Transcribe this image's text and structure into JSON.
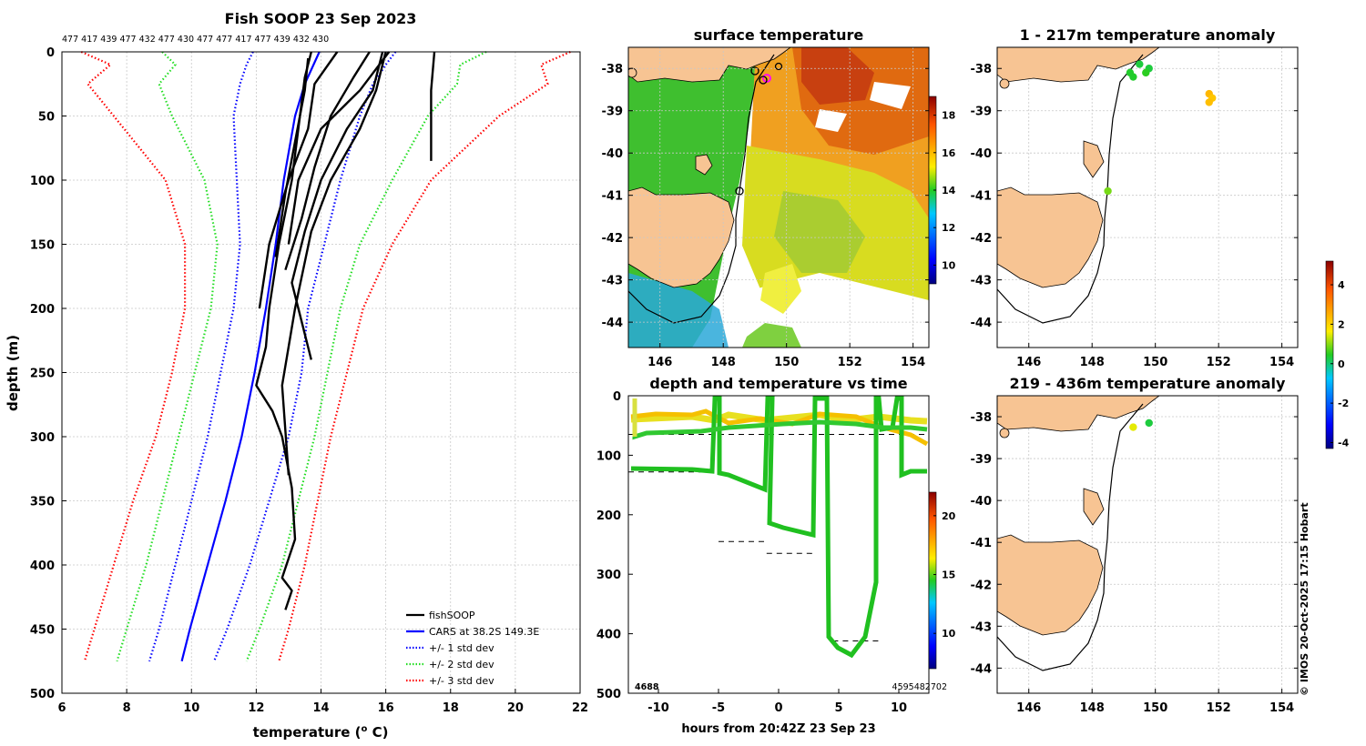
{
  "credit": "© IMOS 20-Oct-2025 17:15 Hobart",
  "colors": {
    "land": "#f7c493",
    "cars": "#0000ff",
    "std1": "#0000ff",
    "std2": "#22dd22",
    "std3": "#ff0000",
    "obs": "#000000"
  },
  "chart_data": [
    {
      "id": "profile",
      "type": "line",
      "title": "Fish SOOP 23 Sep 2023",
      "subtitle": "477 417 439 477 432 477 430 477 477 417 477 439 432 430",
      "xlabel": "temperature (o C)",
      "xlabel_main": "temperature (",
      "xlabel_sup": "o",
      "xlabel_end": " C)",
      "ylabel": "depth (m)",
      "xlim": [
        6,
        22
      ],
      "ylim": [
        500,
        0
      ],
      "xticks": [
        6,
        8,
        10,
        12,
        14,
        16,
        18,
        20,
        22
      ],
      "yticks": [
        0,
        50,
        100,
        150,
        200,
        250,
        300,
        350,
        400,
        450,
        500
      ],
      "legend": [
        "fishSOOP",
        "CARS at 38.2S 149.3E",
        "+/- 1 std dev",
        "+/- 2 std dev",
        "+/- 3 std dev"
      ],
      "legend_position": "bottom-right",
      "series": [
        {
          "name": "CARS at 38.2S 149.3E",
          "style": "solid",
          "color": "#0000ff",
          "depth": [
            0,
            25,
            50,
            100,
            150,
            200,
            250,
            300,
            350,
            400,
            450,
            475
          ],
          "temp": [
            13.95,
            13.5,
            13.2,
            12.85,
            12.6,
            12.3,
            11.95,
            11.55,
            11.05,
            10.5,
            9.95,
            9.7
          ]
        },
        {
          "name": "+/- 1 std dev",
          "style": "dotted",
          "color": "#0000ff",
          "depth": [
            0,
            10,
            25,
            50,
            100,
            150,
            200,
            250,
            300,
            350,
            400,
            450,
            475
          ],
          "lower": [
            11.9,
            11.7,
            11.5,
            11.3,
            11.4,
            11.5,
            11.3,
            10.9,
            10.5,
            10.0,
            9.5,
            9.0,
            8.7
          ],
          "upper": [
            16.3,
            16.0,
            15.6,
            15.2,
            14.6,
            14.1,
            13.6,
            13.4,
            13.0,
            12.4,
            11.8,
            11.1,
            10.7
          ]
        },
        {
          "name": "+/- 2 std dev",
          "style": "dotted",
          "color": "#22dd22",
          "depth": [
            0,
            10,
            25,
            50,
            100,
            150,
            200,
            250,
            300,
            350,
            400,
            450,
            475
          ],
          "lower": [
            9.1,
            9.5,
            9.0,
            9.4,
            10.4,
            10.8,
            10.6,
            10.1,
            9.6,
            9.1,
            8.6,
            8.0,
            7.7
          ],
          "upper": [
            19.1,
            18.3,
            18.2,
            17.3,
            16.2,
            15.2,
            14.6,
            14.2,
            13.8,
            13.3,
            12.8,
            12.1,
            11.7
          ]
        },
        {
          "name": "+/- 3 std dev",
          "style": "dotted",
          "color": "#ff0000",
          "depth": [
            0,
            10,
            25,
            50,
            100,
            150,
            200,
            250,
            300,
            350,
            400,
            450,
            475
          ],
          "lower": [
            6.6,
            7.5,
            6.8,
            7.6,
            9.2,
            9.8,
            9.8,
            9.4,
            8.9,
            8.2,
            7.6,
            7.0,
            6.7
          ],
          "upper": [
            21.7,
            20.8,
            21.0,
            19.5,
            17.4,
            16.2,
            15.3,
            14.8,
            14.3,
            13.9,
            13.5,
            13.0,
            12.7
          ]
        },
        {
          "name": "fishSOOP",
          "style": "solid",
          "color": "#000000",
          "profiles": [
            {
              "depth": [
                0,
                20,
                60,
                100,
                150,
                200,
                230,
                260,
                280,
                300,
                340,
                380,
                410,
                420,
                435
              ],
              "temp": [
                13.7,
                13.5,
                13.3,
                13.1,
                12.7,
                12.4,
                12.3,
                12.0,
                12.5,
                12.8,
                13.1,
                13.2,
                12.8,
                13.1,
                12.9
              ]
            },
            {
              "depth": [
                0,
                30,
                60,
                100,
                140,
                180,
                220,
                240
              ],
              "temp": [
                15.9,
                15.6,
                14.8,
                14.0,
                13.5,
                13.1,
                13.5,
                13.7
              ]
            },
            {
              "depth": [
                0,
                30,
                60,
                100,
                140,
                200,
                260,
                330
              ],
              "temp": [
                16.0,
                15.7,
                15.2,
                14.3,
                13.7,
                13.2,
                12.8,
                13.0
              ]
            },
            {
              "depth": [
                0,
                25,
                60,
                100,
                150,
                200
              ],
              "temp": [
                14.5,
                13.8,
                13.6,
                13.0,
                12.4,
                12.1
              ]
            },
            {
              "depth": [
                0,
                20,
                50,
                90,
                130,
                170
              ],
              "temp": [
                15.5,
                15.0,
                14.3,
                13.8,
                13.4,
                12.9
              ]
            },
            {
              "depth": [
                0,
                30,
                60,
                100,
                150
              ],
              "temp": [
                16.1,
                15.2,
                14.0,
                13.3,
                13.0
              ]
            },
            {
              "depth": [
                0,
                30,
                85
              ],
              "temp": [
                17.5,
                17.4,
                17.4
              ]
            },
            {
              "depth": [
                5,
                30,
                70,
                110,
                160
              ],
              "temp": [
                13.6,
                13.5,
                13.2,
                12.9,
                12.6
              ]
            }
          ]
        }
      ]
    },
    {
      "id": "sst",
      "type": "heatmap",
      "title": "surface temperature",
      "xlim": [
        145,
        154.5
      ],
      "ylim": [
        -44.6,
        -37.5
      ],
      "xticks": [
        146,
        148,
        150,
        152,
        154
      ],
      "yticks": [
        -38,
        -39,
        -40,
        -41,
        -42,
        -43,
        -44
      ],
      "colorbar": {
        "min": 9,
        "max": 19,
        "ticks": [
          10,
          12,
          14,
          16,
          18
        ]
      }
    },
    {
      "id": "timeseries",
      "type": "scatter",
      "title": "depth and temperature vs time",
      "xlabel": "hours from 20:42Z 23 Sep 23",
      "xlim": [
        -12.5,
        12.5
      ],
      "ylim": [
        500,
        0
      ],
      "xticks": [
        -10,
        -5,
        0,
        5,
        10
      ],
      "yticks": [
        0,
        100,
        200,
        300,
        400,
        500
      ],
      "corner_left": "4688",
      "corner_right": "4595482702",
      "colorbar": {
        "min": 7,
        "max": 22,
        "ticks": [
          10,
          15,
          20
        ]
      },
      "target_depths": [
        65,
        128,
        245,
        265,
        412
      ]
    },
    {
      "id": "anom1",
      "type": "scatter",
      "title": "1 - 217m temperature anomaly",
      "xlim": [
        145,
        154.5
      ],
      "ylim": [
        -44.6,
        -37.5
      ],
      "xticks": [
        146,
        148,
        150,
        152,
        154
      ],
      "yticks": [
        -38,
        -39,
        -40,
        -41,
        -42,
        -43,
        -44
      ],
      "points": [
        {
          "lon": 149.2,
          "lat": -38.1,
          "anom": 0.4
        },
        {
          "lon": 149.3,
          "lat": -38.2,
          "anom": 0.4
        },
        {
          "lon": 149.5,
          "lat": -37.9,
          "anom": 0.3
        },
        {
          "lon": 149.8,
          "lat": -38.0,
          "anom": 0.3
        },
        {
          "lon": 149.7,
          "lat": -38.1,
          "anom": 0.5
        },
        {
          "lon": 151.7,
          "lat": -38.6,
          "anom": 2.4
        },
        {
          "lon": 151.8,
          "lat": -38.7,
          "anom": 2.2
        },
        {
          "lon": 151.7,
          "lat": -38.8,
          "anom": 2.3
        },
        {
          "lon": 148.5,
          "lat": -40.9,
          "anom": 0.9
        }
      ]
    },
    {
      "id": "anom2",
      "type": "scatter",
      "title": "219 - 436m temperature anomaly",
      "xlim": [
        145,
        154.5
      ],
      "ylim": [
        -44.6,
        -37.5
      ],
      "xticks": [
        146,
        148,
        150,
        152,
        154
      ],
      "yticks": [
        -38,
        -39,
        -40,
        -41,
        -42,
        -43,
        -44
      ],
      "points": [
        {
          "lon": 149.3,
          "lat": -38.25,
          "anom": 1.5
        },
        {
          "lon": 149.8,
          "lat": -38.15,
          "anom": 0.3
        }
      ],
      "colorbar": {
        "min": -4.3,
        "max": 5.2,
        "ticks": [
          -4,
          -2,
          0,
          2,
          4
        ]
      }
    }
  ]
}
